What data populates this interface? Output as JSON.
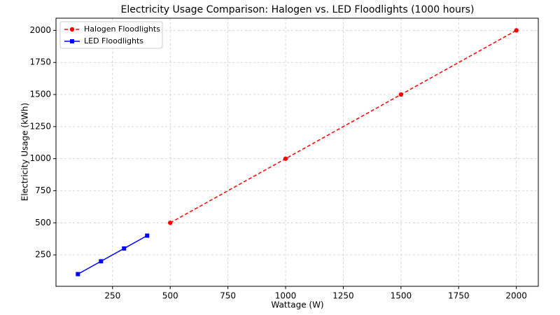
{
  "chart_data": {
    "type": "line",
    "title": "Electricity Usage Comparison: Halogen vs. LED Floodlights (1000 hours)",
    "x_label": "Wattage (W)",
    "y_label": "Electricity Usage (kWh)",
    "series": [
      {
        "name": "Halogen Floodlights",
        "color": "#ff0000",
        "dash": true,
        "marker": "circle",
        "x": [
          500,
          1000,
          1500,
          2000
        ],
        "values": [
          500,
          1000,
          1500,
          2000
        ]
      },
      {
        "name": "LED Floodlights",
        "color": "#0000ff",
        "dash": false,
        "marker": "square",
        "x": [
          100,
          200,
          300,
          400
        ],
        "values": [
          100,
          200,
          300,
          400
        ]
      }
    ],
    "xlim": [
      5,
      2095
    ],
    "ylim": [
      5,
      2095
    ],
    "xticks": [
      250,
      500,
      750,
      1000,
      1250,
      1500,
      1750,
      2000
    ],
    "yticks": [
      250,
      500,
      750,
      1000,
      1250,
      1500,
      1750,
      2000
    ],
    "grid": true,
    "legend": "upper-left"
  }
}
